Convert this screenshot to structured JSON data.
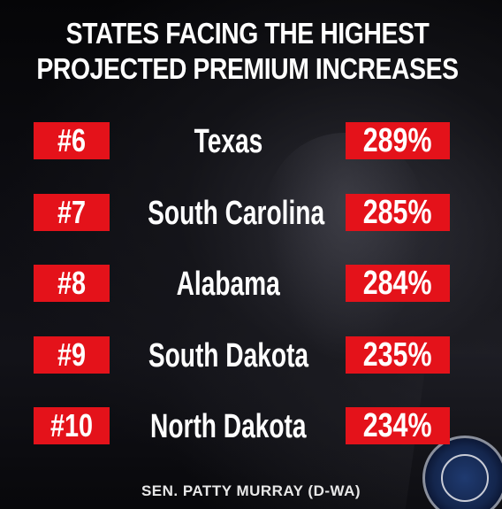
{
  "title_lines": [
    "STATES FACING THE HIGHEST",
    "PROJECTED PREMIUM INCREASES"
  ],
  "rows": [
    {
      "rank": "#6",
      "state": "Texas",
      "increase": "289%"
    },
    {
      "rank": "#7",
      "state": "South Carolina",
      "increase": "285%"
    },
    {
      "rank": "#8",
      "state": "Alabama",
      "increase": "284%"
    },
    {
      "rank": "#9",
      "state": "South Dakota",
      "increase": "235%"
    },
    {
      "rank": "#10",
      "state": "North Dakota",
      "increase": "234%"
    }
  ],
  "credit": "SEN. PATTY MURRAY (D-WA)",
  "colors": {
    "accent_red": "#e4121a",
    "text": "#ffffff",
    "background": "#0a0a0e"
  },
  "icons": {
    "seal": "us-senate-seal-icon"
  }
}
